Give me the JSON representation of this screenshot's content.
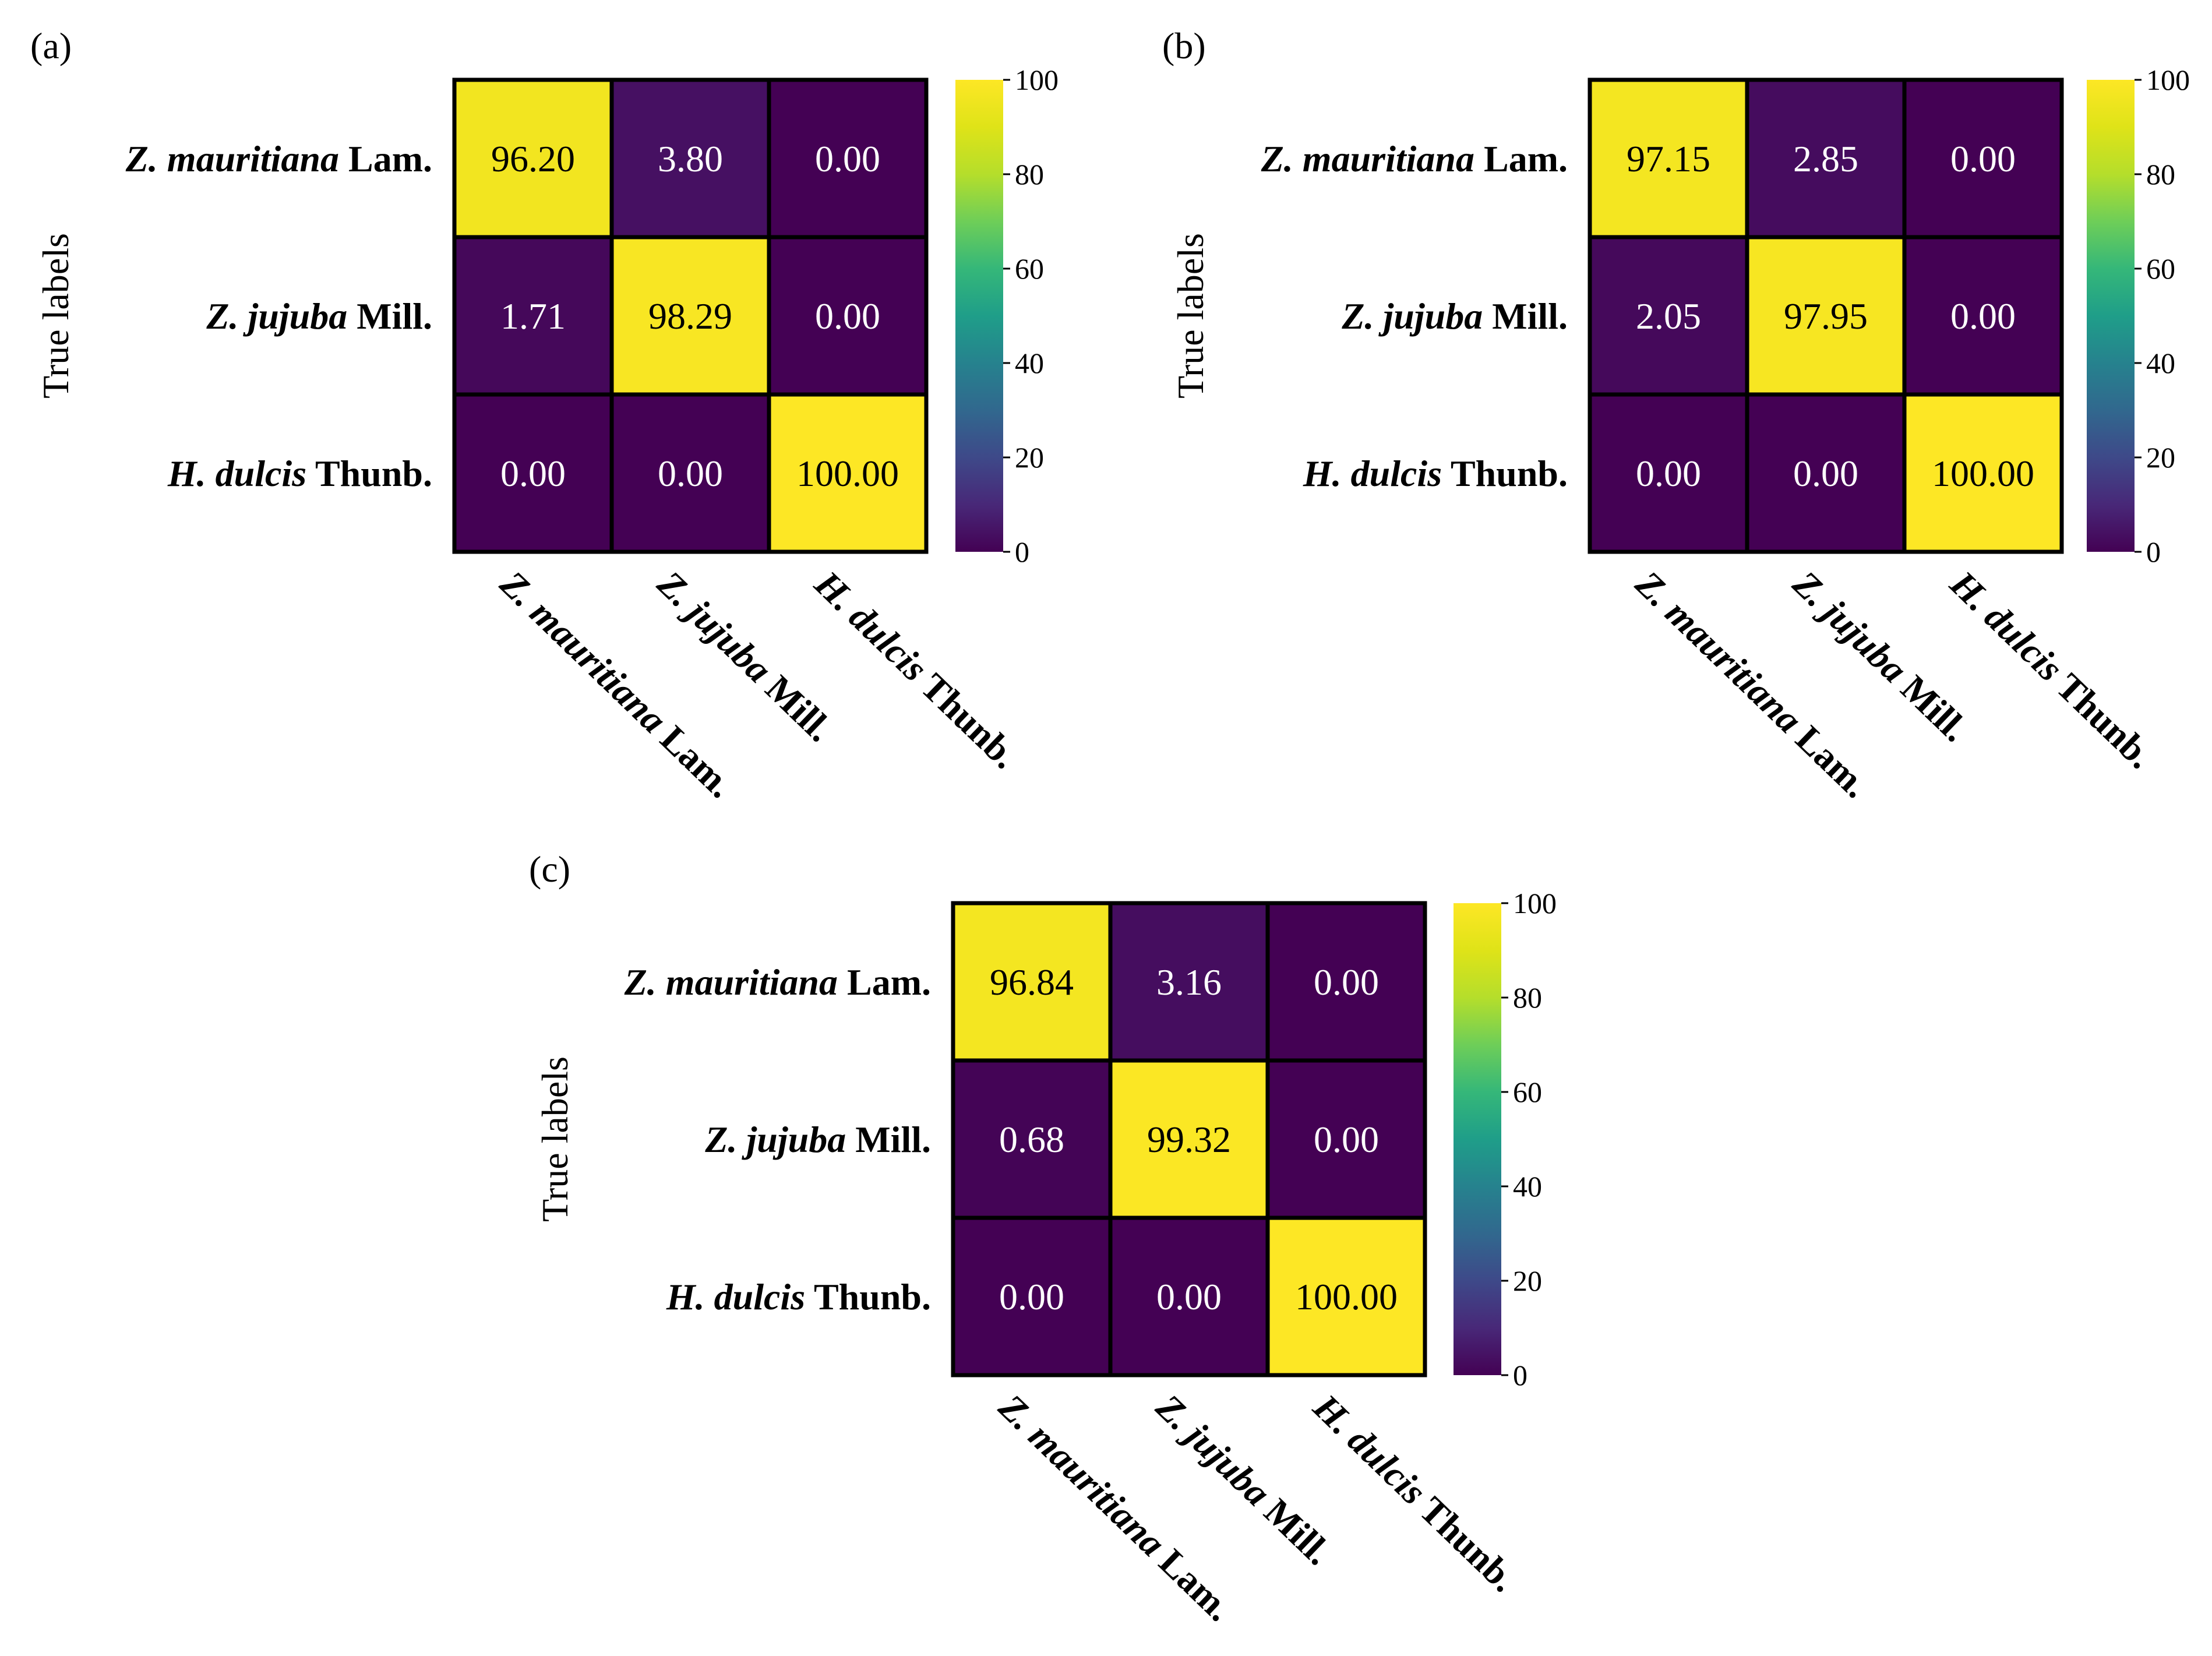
{
  "chart_data": [
    {
      "type": "heatmap",
      "panel_label": "(a)",
      "ylabel": "True labels",
      "row_labels": [
        {
          "italic": "Z. mauritiana",
          "rest": " Lam."
        },
        {
          "italic": "Z. jujuba",
          "rest": " Mill."
        },
        {
          "italic": "H. dulcis",
          "rest": " Thunb."
        }
      ],
      "col_labels": [
        {
          "italic": "Z. mauritiana",
          "rest": " Lam."
        },
        {
          "italic": "Z. jujuba",
          "rest": " Mill."
        },
        {
          "italic": "H. dulcis",
          "rest": " Thunb."
        }
      ],
      "values": [
        [
          96.2,
          3.8,
          0.0
        ],
        [
          1.71,
          98.29,
          0.0
        ],
        [
          0.0,
          0.0,
          100.0
        ]
      ],
      "cell_text": [
        [
          "96.20",
          "3.80",
          "0.00"
        ],
        [
          "1.71",
          "98.29",
          "0.00"
        ],
        [
          "0.00",
          "0.00",
          "100.00"
        ]
      ],
      "colorbar": {
        "range": [
          0,
          100
        ],
        "ticks": [
          "0",
          "20",
          "40",
          "60",
          "80",
          "100"
        ],
        "colormap": "viridis"
      }
    },
    {
      "type": "heatmap",
      "panel_label": "(b)",
      "ylabel": "True labels",
      "row_labels": [
        {
          "italic": "Z. mauritiana",
          "rest": " Lam."
        },
        {
          "italic": "Z. jujuba",
          "rest": " Mill."
        },
        {
          "italic": "H. dulcis",
          "rest": " Thunb."
        }
      ],
      "col_labels": [
        {
          "italic": "Z. mauritiana",
          "rest": " Lam."
        },
        {
          "italic": "Z. jujuba",
          "rest": " Mill."
        },
        {
          "italic": "H. dulcis",
          "rest": " Thunb."
        }
      ],
      "values": [
        [
          97.15,
          2.85,
          0.0
        ],
        [
          2.05,
          97.95,
          0.0
        ],
        [
          0.0,
          0.0,
          100.0
        ]
      ],
      "cell_text": [
        [
          "97.15",
          "2.85",
          "0.00"
        ],
        [
          "2.05",
          "97.95",
          "0.00"
        ],
        [
          "0.00",
          "0.00",
          "100.00"
        ]
      ],
      "colorbar": {
        "range": [
          0,
          100
        ],
        "ticks": [
          "0",
          "20",
          "40",
          "60",
          "80",
          "100"
        ],
        "colormap": "viridis"
      }
    },
    {
      "type": "heatmap",
      "panel_label": "(c)",
      "ylabel": "True labels",
      "row_labels": [
        {
          "italic": "Z. mauritiana",
          "rest": " Lam."
        },
        {
          "italic": "Z. jujuba",
          "rest": " Mill."
        },
        {
          "italic": "H. dulcis",
          "rest": " Thunb."
        }
      ],
      "col_labels": [
        {
          "italic": "Z. mauritiana",
          "rest": " Lam."
        },
        {
          "italic": "Z. jujuba",
          "rest": " Mill."
        },
        {
          "italic": "H. dulcis",
          "rest": " Thunb."
        }
      ],
      "values": [
        [
          96.84,
          3.16,
          0.0
        ],
        [
          0.68,
          99.32,
          0.0
        ],
        [
          0.0,
          0.0,
          100.0
        ]
      ],
      "cell_text": [
        [
          "96.84",
          "3.16",
          "0.00"
        ],
        [
          "0.68",
          "99.32",
          "0.00"
        ],
        [
          "0.00",
          "0.00",
          "100.00"
        ]
      ],
      "colorbar": {
        "range": [
          0,
          100
        ],
        "ticks": [
          "0",
          "20",
          "40",
          "60",
          "80",
          "100"
        ],
        "colormap": "viridis"
      }
    }
  ]
}
